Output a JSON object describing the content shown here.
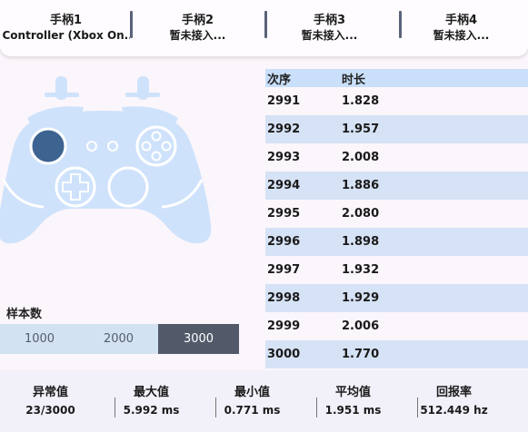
{
  "controllers": [
    {
      "label": "手柄1",
      "status": "Controller (Xbox On..."
    },
    {
      "label": "手柄2",
      "status": "暂未接入..."
    },
    {
      "label": "手柄3",
      "status": "暂未接入..."
    },
    {
      "label": "手柄4",
      "status": "暂未接入..."
    }
  ],
  "sample": {
    "label": "样本数",
    "options": [
      "1000",
      "2000",
      "3000"
    ],
    "selected": "3000"
  },
  "table": {
    "headers": [
      "次序",
      "时长"
    ],
    "rows": [
      [
        "2991",
        "1.828"
      ],
      [
        "2992",
        "1.957"
      ],
      [
        "2993",
        "2.008"
      ],
      [
        "2994",
        "1.886"
      ],
      [
        "2995",
        "2.080"
      ],
      [
        "2996",
        "1.898"
      ],
      [
        "2997",
        "1.932"
      ],
      [
        "2998",
        "1.929"
      ],
      [
        "2999",
        "2.006"
      ],
      [
        "3000",
        "1.770"
      ]
    ]
  },
  "stats": [
    {
      "label": "异常值",
      "value": "23/3000"
    },
    {
      "label": "最大值",
      "value": "5.992 ms"
    },
    {
      "label": "最小值",
      "value": "0.771 ms"
    },
    {
      "label": "平均值",
      "value": "1.951 ms"
    },
    {
      "label": "回报率",
      "value": "512.449 hz"
    }
  ],
  "colors": {
    "controller_body": "#cfe2fb",
    "controller_outline": "#ffffff",
    "left_stick_active": "#3d6391",
    "selected_sample": "#525a6a",
    "table_header": "#c9dffa",
    "table_row_alt": "#d6e2f5"
  }
}
